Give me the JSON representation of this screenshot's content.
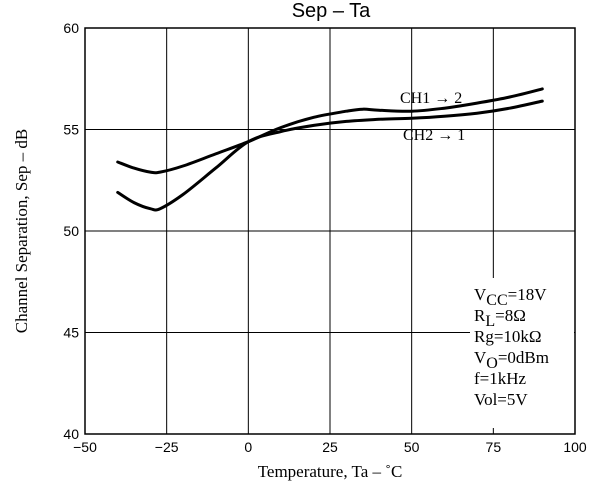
{
  "chart_data": {
    "type": "line",
    "title": "Sep  –  Ta",
    "xlabel": "Temperature,  Ta  –  ˚C",
    "ylabel": "Channel Separation,  Sep  –  dB",
    "xlim": [
      -50,
      100
    ],
    "ylim": [
      40,
      60
    ],
    "x_ticks": [
      "−50",
      "−25",
      "0",
      "25",
      "50",
      "75",
      "100"
    ],
    "y_ticks": [
      "40",
      "45",
      "50",
      "55",
      "60"
    ],
    "grid": true,
    "series": [
      {
        "name": "CH1 → 2",
        "x": [
          -40,
          -35,
          -30,
          -27,
          -20,
          -10,
          0,
          10,
          20,
          30,
          35,
          40,
          50,
          60,
          70,
          80,
          90
        ],
        "y": [
          53.4,
          53.1,
          52.9,
          52.9,
          53.2,
          53.8,
          54.4,
          55.1,
          55.6,
          55.9,
          56.0,
          55.95,
          55.9,
          56.05,
          56.3,
          56.6,
          57.0
        ]
      },
      {
        "name": "CH2 → 1",
        "x": [
          -40,
          -35,
          -30,
          -27,
          -20,
          -10,
          0,
          10,
          20,
          30,
          40,
          50,
          60,
          70,
          80,
          90
        ],
        "y": [
          51.9,
          51.4,
          51.1,
          51.1,
          51.8,
          53.1,
          54.4,
          54.9,
          55.2,
          55.4,
          55.5,
          55.55,
          55.65,
          55.8,
          56.05,
          56.4
        ]
      }
    ],
    "conditions": [
      {
        "main": "V",
        "sub": "CC",
        "rest": "=18V"
      },
      {
        "main": "R",
        "sub": "L",
        "rest": "=8Ω"
      },
      {
        "main": "Rg=10kΩ",
        "sub": "",
        "rest": ""
      },
      {
        "main": "V",
        "sub": "O",
        "rest": "=0dBm"
      },
      {
        "main": "f=1kHz",
        "sub": "",
        "rest": ""
      },
      {
        "main": "Vol=5V",
        "sub": "",
        "rest": ""
      }
    ]
  }
}
